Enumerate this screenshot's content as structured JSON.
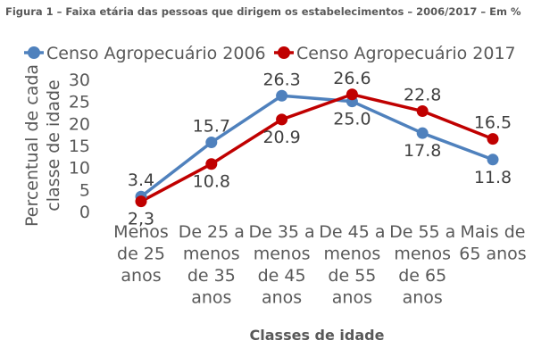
{
  "figure_title": "Figura 1 – Faixa etária das pessoas que dirigem os estabelecimentos – 2006/2017 – Em %",
  "chart_data": {
    "type": "line",
    "categories": [
      [
        "Menos",
        "de 25",
        "anos"
      ],
      [
        "De 25 a",
        "menos",
        "de 35",
        "anos"
      ],
      [
        "De 35 a",
        "menos",
        "de 45",
        "anos"
      ],
      [
        "De 45 a",
        "menos",
        "de 55",
        "anos"
      ],
      [
        "De 55 a",
        "menos",
        "de 65",
        "anos"
      ],
      [
        "Mais de",
        "65 anos"
      ]
    ],
    "series": [
      {
        "name": "Censo Agropecuário 2006",
        "color": "#4f81bd",
        "values": [
          3.4,
          15.7,
          26.3,
          25.0,
          17.8,
          11.8
        ],
        "labels": [
          "3.4",
          "15.7",
          "26.3",
          "25.0",
          "17.8",
          "11.8"
        ],
        "label_position": [
          "above",
          "above",
          "above",
          "below",
          "below",
          "below"
        ]
      },
      {
        "name": "Censo Agropecuário 2017",
        "color": "#c00000",
        "values": [
          2.3,
          10.8,
          20.9,
          26.6,
          22.8,
          16.5
        ],
        "labels": [
          "2,3",
          "10.8",
          "20.9",
          "26.6",
          "22.8",
          "16.5"
        ],
        "label_position": [
          "below",
          "below",
          "below",
          "above",
          "above",
          "above"
        ]
      }
    ],
    "ylabel": [
      "Percentual de cada",
      "classe de idade"
    ],
    "xlabel": "Classes de idade",
    "ylim": [
      0,
      30
    ],
    "yticks": [
      0,
      5,
      10,
      15,
      20,
      25,
      30
    ],
    "grid": false,
    "legend": "top"
  }
}
